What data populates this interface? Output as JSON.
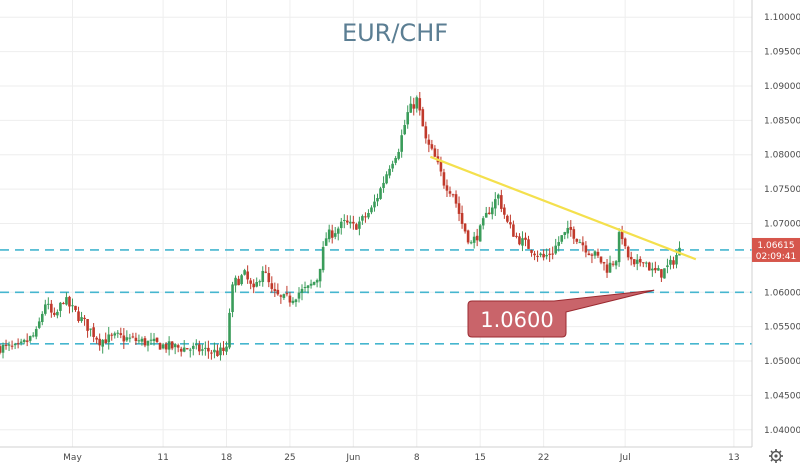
{
  "chart_data": {
    "type": "candlestick",
    "title": "EUR/CHF",
    "ylim": [
      1.0375,
      1.1025
    ],
    "y_ticks": [
      "1.10000",
      "1.09500",
      "1.09000",
      "1.08500",
      "1.08000",
      "1.07500",
      "1.07000",
      "1.06500",
      "1.06000",
      "1.05500",
      "1.05000",
      "1.04500",
      "1.04000"
    ],
    "x_ticks": [
      {
        "label": "May",
        "day": 0
      },
      {
        "label": "11",
        "day": 10
      },
      {
        "label": "18",
        "day": 17
      },
      {
        "label": "25",
        "day": 24
      },
      {
        "label": "Jun",
        "day": 31
      },
      {
        "label": "8",
        "day": 38
      },
      {
        "label": "15",
        "day": 45
      },
      {
        "label": "22",
        "day": 52
      },
      {
        "label": "Jul",
        "day": 61
      },
      {
        "label": "13",
        "day": 73
      }
    ],
    "xlim": [
      -8,
      75
    ],
    "x_unit": "days from May 1",
    "bars_per_day": 3,
    "anchors": [
      [
        -8,
        1.052
      ],
      [
        -6,
        1.0518
      ],
      [
        -4,
        1.054
      ],
      [
        -3,
        1.0585
      ],
      [
        -2,
        1.056
      ],
      [
        -1,
        1.059
      ],
      [
        0,
        1.0575
      ],
      [
        1,
        1.056
      ],
      [
        2,
        1.0545
      ],
      [
        3,
        1.053
      ],
      [
        5,
        1.0535
      ],
      [
        7,
        1.053
      ],
      [
        9,
        1.0525
      ],
      [
        11,
        1.052
      ],
      [
        13,
        1.0518
      ],
      [
        15,
        1.0515
      ],
      [
        16,
        1.0512
      ],
      [
        17,
        1.0515
      ],
      [
        17.5,
        1.06
      ],
      [
        18,
        1.0615
      ],
      [
        19,
        1.0625
      ],
      [
        20,
        1.06
      ],
      [
        21,
        1.0635
      ],
      [
        22,
        1.06
      ],
      [
        23,
        1.059
      ],
      [
        24,
        1.059
      ],
      [
        25,
        1.06
      ],
      [
        26,
        1.0605
      ],
      [
        27,
        1.062
      ],
      [
        28,
        1.068
      ],
      [
        29,
        1.069
      ],
      [
        30,
        1.07
      ],
      [
        31,
        1.0695
      ],
      [
        32,
        1.0705
      ],
      [
        33,
        1.072
      ],
      [
        34,
        1.075
      ],
      [
        35,
        1.0785
      ],
      [
        36,
        1.081
      ],
      [
        37,
        1.086
      ],
      [
        38,
        1.088
      ],
      [
        39,
        1.082
      ],
      [
        40,
        1.0795
      ],
      [
        41,
        1.076
      ],
      [
        42,
        1.0745
      ],
      [
        43,
        1.07
      ],
      [
        44,
        1.067
      ],
      [
        45,
        1.069
      ],
      [
        46,
        1.072
      ],
      [
        47,
        1.074
      ],
      [
        48,
        1.07
      ],
      [
        49,
        1.068
      ],
      [
        50,
        1.067
      ],
      [
        51,
        1.066
      ],
      [
        52,
        1.065
      ],
      [
        53,
        1.066
      ],
      [
        54,
        1.068
      ],
      [
        55,
        1.069
      ],
      [
        56,
        1.0675
      ],
      [
        57,
        1.066
      ],
      [
        58,
        1.065
      ],
      [
        59,
        1.0635
      ],
      [
        60,
        1.065
      ],
      [
        60.5,
        1.0695
      ],
      [
        61,
        1.066
      ],
      [
        62,
        1.0635
      ],
      [
        63,
        1.065
      ],
      [
        64,
        1.063
      ],
      [
        65,
        1.0628
      ],
      [
        66,
        1.064
      ],
      [
        67,
        1.0661
      ]
    ],
    "horizontal_lines": [
      {
        "value": 1.06615,
        "style": "dashed",
        "color": "#46b6cf"
      },
      {
        "value": 1.06,
        "style": "dashed",
        "color": "#46b6cf"
      },
      {
        "value": 1.0525,
        "style": "dashed",
        "color": "#46b6cf"
      }
    ],
    "trendline": {
      "start": [
        39.5,
        1.0797
      ],
      "end": [
        68.8,
        1.0648
      ],
      "color": "#f4e04d"
    },
    "annotation": {
      "text": "1.0600",
      "point": [
        64.2,
        1.0603
      ],
      "fill": "#c9646a",
      "stroke": "#9b2a30"
    },
    "current_price": {
      "value": "1.06615",
      "countdown": "02:09:41",
      "color": "#d6564c"
    },
    "colors": {
      "up": "#3a9c5a",
      "down": "#c0392b",
      "background": "#ffffff",
      "grid": "#eeeeee",
      "title": "#5b7e93"
    }
  }
}
